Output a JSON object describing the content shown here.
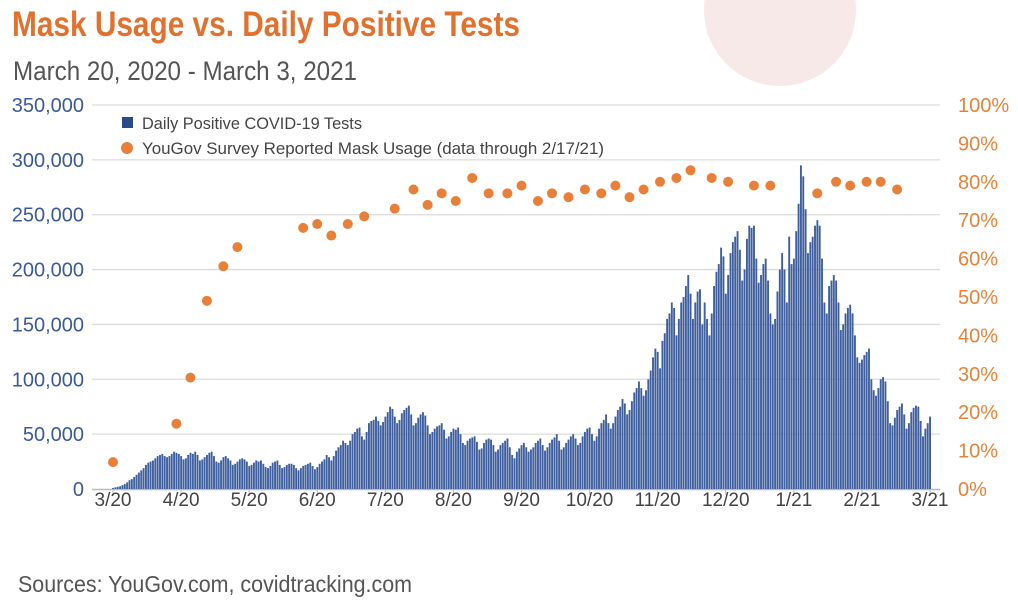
{
  "chart_data": {
    "type": "bar+scatter",
    "title": "Mask Usage vs. Daily Positive Tests",
    "subtitle": "March 20, 2020 - March 3, 2021",
    "source": "Sources: YouGov.com, covidtracking.com",
    "colors": {
      "title": "#e0712f",
      "bars": "#3f5f9f",
      "dots": "#e8803a",
      "left_axis": "#3a5a9a",
      "right_axis": "#e8823a",
      "grid": "#dcdcdc",
      "decor_circle": "#f6e9e7"
    },
    "legend": [
      {
        "label": "Daily Positive COVID-19 Tests",
        "marker": "square",
        "color": "#2a4a8a"
      },
      {
        "label": "YouGov Survey Reported Mask Usage (data through 2/17/21)",
        "marker": "circle",
        "color": "#e8803a"
      }
    ],
    "legend_position": "top-left",
    "grid": true,
    "x_tick_labels": [
      "3/20",
      "4/20",
      "5/20",
      "6/20",
      "7/20",
      "8/20",
      "9/20",
      "10/20",
      "11/20",
      "12/20",
      "1/21",
      "2/21",
      "3/21"
    ],
    "y_left": {
      "ylim": [
        0,
        350000
      ],
      "tick_labels": [
        "0",
        "50,000",
        "100,000",
        "150,000",
        "200,000",
        "250,000",
        "300,000",
        "350,000"
      ]
    },
    "y_right": {
      "ylim": [
        0,
        100
      ],
      "tick_labels": [
        "0%",
        "10%",
        "20%",
        "30%",
        "40%",
        "50%",
        "60%",
        "70%",
        "80%",
        "90%",
        "100%"
      ]
    },
    "bars": {
      "name": "Daily Positive COVID-19 Tests",
      "start_date": "2020-03-20",
      "end_date": "2021-03-03",
      "values": [
        1000,
        1500,
        2000,
        2500,
        3500,
        4500,
        6000,
        8000,
        9000,
        11000,
        13000,
        15000,
        17000,
        19000,
        22000,
        24000,
        25000,
        26000,
        28000,
        30000,
        31000,
        32000,
        30000,
        29000,
        30000,
        32000,
        34000,
        33000,
        32000,
        30000,
        27000,
        28000,
        31000,
        33000,
        32000,
        34000,
        31000,
        26000,
        27000,
        29000,
        31000,
        33000,
        34000,
        30000,
        25000,
        24000,
        26000,
        29000,
        30000,
        28000,
        26000,
        22000,
        23000,
        25000,
        27000,
        28000,
        27000,
        25000,
        21000,
        22000,
        24000,
        26000,
        25000,
        26000,
        23000,
        20000,
        19000,
        21000,
        24000,
        25000,
        26000,
        22000,
        19000,
        20000,
        22000,
        23000,
        23000,
        22000,
        19000,
        17000,
        19000,
        21000,
        22000,
        23000,
        24000,
        21000,
        18000,
        20000,
        23000,
        25000,
        27000,
        31000,
        29000,
        26000,
        30000,
        35000,
        38000,
        40000,
        44000,
        42000,
        40000,
        44000,
        50000,
        52000,
        55000,
        56000,
        48000,
        45000,
        52000,
        60000,
        62000,
        63000,
        66000,
        62000,
        58000,
        61000,
        66000,
        70000,
        75000,
        73000,
        66000,
        60000,
        63000,
        69000,
        72000,
        74000,
        76000,
        68000,
        58000,
        60000,
        65000,
        68000,
        70000,
        67000,
        58000,
        50000,
        52000,
        55000,
        57000,
        58000,
        60000,
        54000,
        46000,
        48000,
        52000,
        55000,
        54000,
        56000,
        50000,
        42000,
        40000,
        44000,
        46000,
        47000,
        48000,
        43000,
        36000,
        37000,
        42000,
        45000,
        46000,
        45000,
        40000,
        34000,
        36000,
        40000,
        42000,
        44000,
        46000,
        38000,
        31000,
        28000,
        34000,
        37000,
        40000,
        42000,
        38000,
        34000,
        36000,
        38000,
        42000,
        44000,
        46000,
        40000,
        35000,
        38000,
        42000,
        45000,
        47000,
        50000,
        44000,
        36000,
        38000,
        42000,
        45000,
        48000,
        50000,
        46000,
        40000,
        42000,
        48000,
        52000,
        55000,
        56000,
        50000,
        44000,
        48000,
        55000,
        60000,
        63000,
        68000,
        60000,
        55000,
        60000,
        66000,
        72000,
        75000,
        82000,
        78000,
        68000,
        72000,
        80000,
        88000,
        92000,
        98000,
        92000,
        85000,
        90000,
        100000,
        108000,
        120000,
        128000,
        125000,
        110000,
        135000,
        142000,
        155000,
        160000,
        170000,
        165000,
        140000,
        155000,
        170000,
        175000,
        185000,
        195000,
        178000,
        155000,
        170000,
        180000,
        182000,
        150000,
        170000,
        155000,
        140000,
        160000,
        185000,
        198000,
        205000,
        220000,
        212000,
        178000,
        195000,
        215000,
        225000,
        230000,
        235000,
        218000,
        190000,
        200000,
        228000,
        240000,
        238000,
        240000,
        210000,
        188000,
        195000,
        205000,
        210000,
        190000,
        160000,
        150000,
        155000,
        180000,
        200000,
        215000,
        200000,
        170000,
        230000,
        205000,
        210000,
        235000,
        260000,
        295000,
        285000,
        255000,
        215000,
        225000,
        230000,
        240000,
        245000,
        240000,
        210000,
        170000,
        160000,
        185000,
        190000,
        195000,
        190000,
        170000,
        145000,
        150000,
        160000,
        165000,
        168000,
        160000,
        140000,
        120000,
        115000,
        118000,
        122000,
        125000,
        128000,
        100000,
        90000,
        85000,
        92000,
        100000,
        102000,
        98000,
        80000,
        60000,
        58000,
        65000,
        72000,
        75000,
        78000,
        68000,
        55000,
        60000,
        70000,
        74000,
        76000,
        75000,
        62000,
        48000,
        55000,
        60000,
        66000
      ]
    },
    "scatter": {
      "name": "YouGov Survey Reported Mask Usage (data through 2/17/21)",
      "points": [
        [
          "2020-03-20",
          7
        ],
        [
          "2020-04-16",
          17
        ],
        [
          "2020-04-22",
          29
        ],
        [
          "2020-04-29",
          49
        ],
        [
          "2020-05-06",
          58
        ],
        [
          "2020-05-12",
          63
        ],
        [
          "2020-06-09",
          68
        ],
        [
          "2020-06-15",
          69
        ],
        [
          "2020-06-21",
          66
        ],
        [
          "2020-06-28",
          69
        ],
        [
          "2020-07-05",
          71
        ],
        [
          "2020-07-18",
          73
        ],
        [
          "2020-07-26",
          78
        ],
        [
          "2020-08-01",
          74
        ],
        [
          "2020-08-07",
          77
        ],
        [
          "2020-08-13",
          75
        ],
        [
          "2020-08-20",
          81
        ],
        [
          "2020-08-27",
          77
        ],
        [
          "2020-09-04",
          77
        ],
        [
          "2020-09-10",
          79
        ],
        [
          "2020-09-17",
          75
        ],
        [
          "2020-09-23",
          77
        ],
        [
          "2020-09-30",
          76
        ],
        [
          "2020-10-07",
          78
        ],
        [
          "2020-10-14",
          77
        ],
        [
          "2020-10-20",
          79
        ],
        [
          "2020-10-26",
          76
        ],
        [
          "2020-11-01",
          78
        ],
        [
          "2020-11-08",
          80
        ],
        [
          "2020-11-15",
          81
        ],
        [
          "2020-11-21",
          83
        ],
        [
          "2020-11-30",
          81
        ],
        [
          "2020-12-07",
          80
        ],
        [
          "2020-12-18",
          79
        ],
        [
          "2020-12-25",
          79
        ],
        [
          "2021-01-14",
          77
        ],
        [
          "2021-01-22",
          80
        ],
        [
          "2021-01-28",
          79
        ],
        [
          "2021-02-04",
          80
        ],
        [
          "2021-02-10",
          80
        ],
        [
          "2021-02-17",
          78
        ]
      ]
    }
  }
}
